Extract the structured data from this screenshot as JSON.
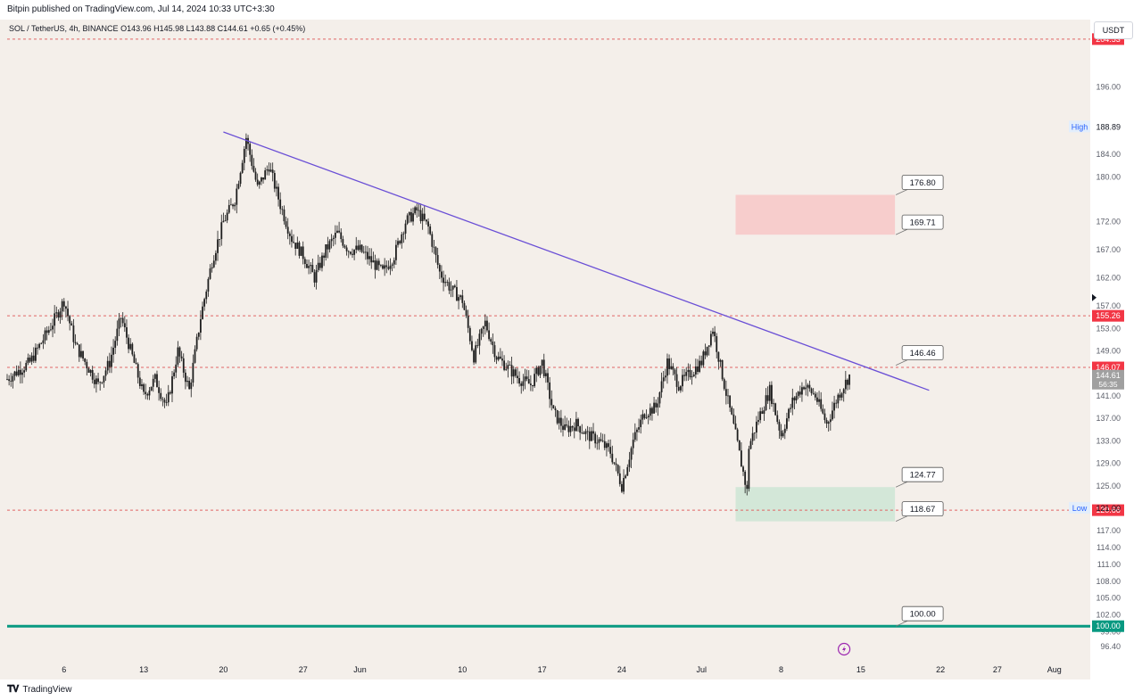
{
  "header": {
    "published_text": "Bitpin published on TradingView.com, Jul 14, 2024 10:33 UTC+3:30"
  },
  "symbol_line": {
    "symbol": "SOL / TetherUS, 4h, BINANCE",
    "ohlc": "O143.96 H145.98 L143.88 C144.61 +0.65 (+0.45%)"
  },
  "currency_button": "USDT",
  "footer": {
    "logo_text": "TradingView"
  },
  "colors": {
    "background": "#f4efea",
    "candle": "#1e1e1e",
    "trendline": "#6a4fd6",
    "dashed_level": "#e06666",
    "resistance_zone": "#f7c9c9",
    "support_zone": "#cfe5d6",
    "support_line": "#089981",
    "price_tag_red": "#f23645",
    "price_tag_gray": "#a0a0a0",
    "support_tag": "#089981"
  },
  "chart_data": {
    "type": "candlestick",
    "x_start": "2024-05-01",
    "x_end": "2024-08-04",
    "ylim": [
      94.0,
      208.0
    ],
    "y_tick_labels": [
      "96.40",
      "99.00",
      "102.00",
      "105.00",
      "108.00",
      "111.00",
      "114.00",
      "117.00",
      "121.00",
      "125.00",
      "129.00",
      "133.00",
      "137.00",
      "141.00",
      "145.00",
      "149.00",
      "153.00",
      "157.00",
      "162.00",
      "167.00",
      "172.00",
      "180.00",
      "184.00",
      "196.00"
    ],
    "x_tick_labels": [
      {
        "date": "2024-05-06",
        "label": "6"
      },
      {
        "date": "2024-05-13",
        "label": "13"
      },
      {
        "date": "2024-05-20",
        "label": "20"
      },
      {
        "date": "2024-05-27",
        "label": "27"
      },
      {
        "date": "2024-06-01",
        "label": "Jun"
      },
      {
        "date": "2024-06-10",
        "label": "10"
      },
      {
        "date": "2024-06-17",
        "label": "17"
      },
      {
        "date": "2024-06-24",
        "label": "24"
      },
      {
        "date": "2024-07-01",
        "label": "Jul"
      },
      {
        "date": "2024-07-08",
        "label": "8"
      },
      {
        "date": "2024-07-15",
        "label": "15"
      },
      {
        "date": "2024-07-22",
        "label": "22"
      },
      {
        "date": "2024-07-27",
        "label": "27"
      },
      {
        "date": "2024-08-01",
        "label": "Aug"
      }
    ],
    "close_path": [
      [
        "2024-05-01",
        137.0
      ],
      [
        "2024-05-01",
        144.0
      ],
      [
        "2024-05-03",
        147.0
      ],
      [
        "2024-05-05",
        154.0
      ],
      [
        "2024-05-06",
        158.0
      ],
      [
        "2024-05-07",
        150.0
      ],
      [
        "2024-05-09",
        143.0
      ],
      [
        "2024-05-10",
        147.0
      ],
      [
        "2024-05-11",
        155.0
      ],
      [
        "2024-05-12",
        148.0
      ],
      [
        "2024-05-13",
        141.0
      ],
      [
        "2024-05-14",
        144.0
      ],
      [
        "2024-05-15",
        139.0
      ],
      [
        "2024-05-16",
        149.0
      ],
      [
        "2024-05-17",
        142.0
      ],
      [
        "2024-05-18",
        155.0
      ],
      [
        "2024-05-19",
        165.0
      ],
      [
        "2024-05-20",
        172.0
      ],
      [
        "2024-05-21",
        176.0
      ],
      [
        "2024-05-22",
        187.0
      ],
      [
        "2024-05-23",
        178.0
      ],
      [
        "2024-05-24",
        182.0
      ],
      [
        "2024-05-25",
        175.0
      ],
      [
        "2024-05-26",
        169.0
      ],
      [
        "2024-05-27",
        166.0
      ],
      [
        "2024-05-28",
        162.0
      ],
      [
        "2024-05-29",
        167.0
      ],
      [
        "2024-05-30",
        170.0
      ],
      [
        "2024-05-31",
        167.0
      ],
      [
        "2024-06-01",
        167.0
      ],
      [
        "2024-06-02",
        165.0
      ],
      [
        "2024-06-03",
        163.0
      ],
      [
        "2024-06-04",
        166.0
      ],
      [
        "2024-06-05",
        172.0
      ],
      [
        "2024-06-06",
        174.0
      ],
      [
        "2024-06-07",
        171.0
      ],
      [
        "2024-06-08",
        163.0
      ],
      [
        "2024-06-09",
        160.0
      ],
      [
        "2024-06-10",
        158.0
      ],
      [
        "2024-06-11",
        148.0
      ],
      [
        "2024-06-12",
        154.0
      ],
      [
        "2024-06-13",
        148.0
      ],
      [
        "2024-06-14",
        146.0
      ],
      [
        "2024-06-15",
        144.0
      ],
      [
        "2024-06-16",
        143.0
      ],
      [
        "2024-06-17",
        147.0
      ],
      [
        "2024-06-18",
        138.0
      ],
      [
        "2024-06-19",
        135.0
      ],
      [
        "2024-06-20",
        136.0
      ],
      [
        "2024-06-21",
        134.0
      ],
      [
        "2024-06-22",
        133.0
      ],
      [
        "2024-06-23",
        131.0
      ],
      [
        "2024-06-24",
        125.0
      ],
      [
        "2024-06-25",
        133.0
      ],
      [
        "2024-06-26",
        138.0
      ],
      [
        "2024-06-27",
        139.0
      ],
      [
        "2024-06-28",
        147.0
      ],
      [
        "2024-06-29",
        143.0
      ],
      [
        "2024-06-30",
        145.0
      ],
      [
        "2024-07-01",
        147.0
      ],
      [
        "2024-07-02",
        153.0
      ],
      [
        "2024-07-03",
        143.0
      ],
      [
        "2024-07-04",
        134.0
      ],
      [
        "2024-07-05",
        124.0
      ],
      [
        "2024-07-05",
        131.0
      ],
      [
        "2024-07-06",
        137.0
      ],
      [
        "2024-07-07",
        142.0
      ],
      [
        "2024-07-08",
        134.0
      ],
      [
        "2024-07-09",
        140.0
      ],
      [
        "2024-07-10",
        143.0
      ],
      [
        "2024-07-11",
        141.0
      ],
      [
        "2024-07-12",
        136.0
      ],
      [
        "2024-07-13",
        141.0
      ],
      [
        "2024-07-14",
        144.61
      ]
    ],
    "trendline": {
      "from": [
        "2024-05-20",
        188.0
      ],
      "to": [
        "2024-07-21",
        142.0
      ]
    },
    "resistance_zone": {
      "from": "2024-07-04",
      "to": "2024-07-18",
      "low": 169.71,
      "high": 176.8
    },
    "support_zone": {
      "from": "2024-07-04",
      "to": "2024-07-18",
      "low": 118.67,
      "high": 124.77
    },
    "dashed_levels": [
      204.53,
      155.26,
      146.07,
      120.66
    ],
    "support_line": 100.0,
    "callouts": [
      {
        "price": 176.8,
        "label": "176.80"
      },
      {
        "price": 169.71,
        "label": "169.71"
      },
      {
        "price": 146.46,
        "label": "146.46"
      },
      {
        "price": 124.77,
        "label": "124.77"
      },
      {
        "price": 118.67,
        "label": "118.67"
      },
      {
        "price": 100.0,
        "label": "100.00"
      }
    ],
    "axis_tags": [
      {
        "price": 204.53,
        "label": "204.53",
        "style": "red"
      },
      {
        "price": 155.26,
        "label": "155.26",
        "style": "red"
      },
      {
        "price": 146.07,
        "label": "146.07",
        "style": "red"
      },
      {
        "price": 144.61,
        "label": "144.61",
        "style": "gray",
        "sublabel": "56:35"
      },
      {
        "price": 120.66,
        "label": "120.66",
        "style": "red"
      },
      {
        "price": 100.0,
        "label": "100.00",
        "style": "green"
      }
    ],
    "high_marker": {
      "price": 188.89,
      "label": "High",
      "value": "188.89"
    },
    "low_marker": {
      "price": 121.0,
      "label": "Low",
      "value": "121.00"
    },
    "scroll_arrow_price": 158.5,
    "lightning_date": "2024-07-14"
  }
}
